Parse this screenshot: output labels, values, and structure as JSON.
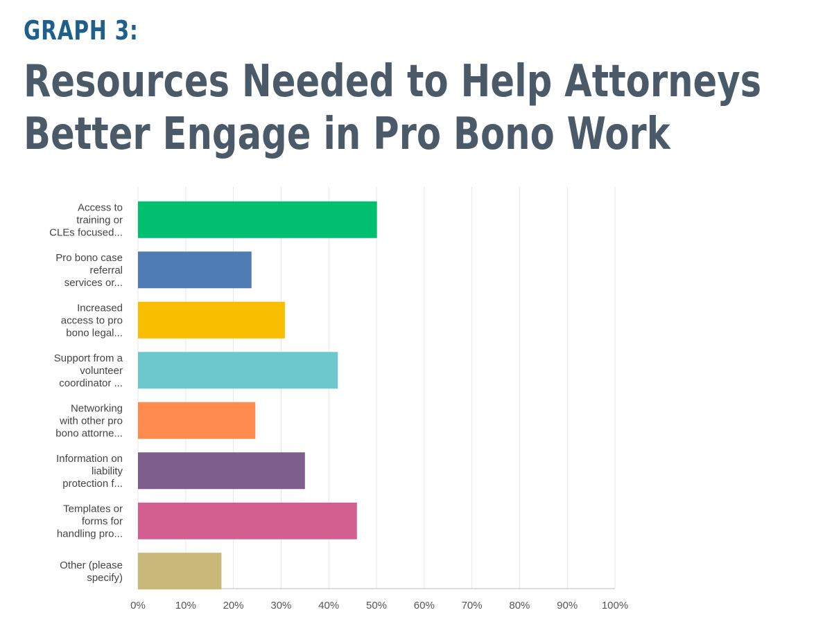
{
  "kicker": "GRAPH 3:",
  "title": "Resources Needed to Help Attorneys Better Engage in Pro Bono Work",
  "chart_data": {
    "type": "bar",
    "orientation": "horizontal",
    "title": "Resources Needed to Help Attorneys Better Engage in Pro Bono Work",
    "categories": [
      [
        "Access to",
        "training or",
        "CLEs focused..."
      ],
      [
        "Pro bono case",
        "referral",
        "services or..."
      ],
      [
        "Increased",
        "access to pro",
        "bono legal..."
      ],
      [
        "Support from a",
        "volunteer",
        "coordinator ..."
      ],
      [
        "Networking",
        "with other pro",
        "bono attorne..."
      ],
      [
        "Information on",
        "liability",
        "protection f..."
      ],
      [
        "Templates or",
        "forms for",
        "handling pro..."
      ],
      [
        "Other (please",
        "specify)"
      ]
    ],
    "values": [
      50.1,
      23.8,
      30.8,
      41.9,
      24.6,
      35.0,
      45.9,
      17.5
    ],
    "colors": [
      "#00bf6f",
      "#507cb6",
      "#f9be00",
      "#6bc8cd",
      "#ff8b4f",
      "#7d5e8c",
      "#d25f90",
      "#c7b879"
    ],
    "xlim": [
      0,
      100
    ],
    "ticks": [
      "0%",
      "10%",
      "20%",
      "30%",
      "40%",
      "50%",
      "60%",
      "70%",
      "80%",
      "90%",
      "100%"
    ],
    "xlabel": "",
    "ylabel": "",
    "grid": true
  }
}
